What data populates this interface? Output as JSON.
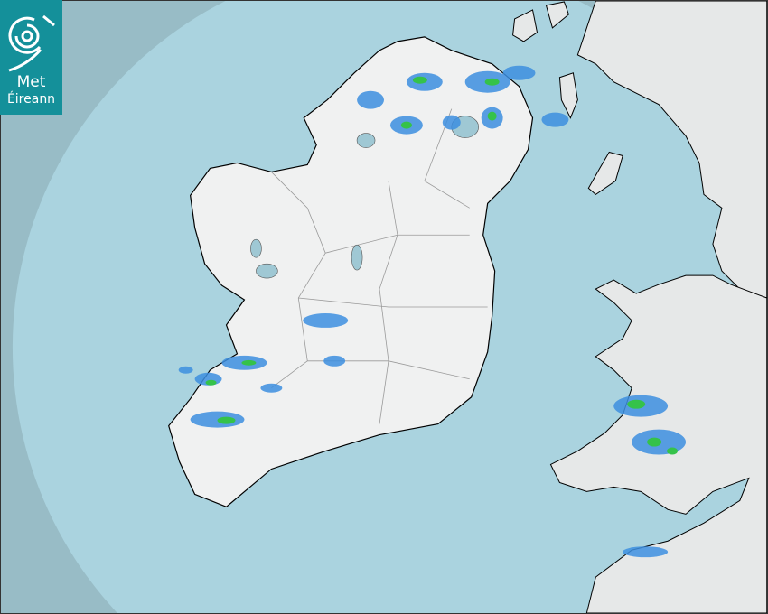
{
  "logo": {
    "line1": "Met",
    "line2": "Éireann",
    "icon": "swirl-icon"
  },
  "map": {
    "type": "rainfall radar",
    "colors": {
      "sea_in_range": "#aad3df",
      "sea_out_of_range": "#98bcc6",
      "land": "#eef0f0",
      "rain_light": "#3d8fe0",
      "rain_moderate": "#35c24a",
      "logo_bg": "#14909a"
    }
  }
}
